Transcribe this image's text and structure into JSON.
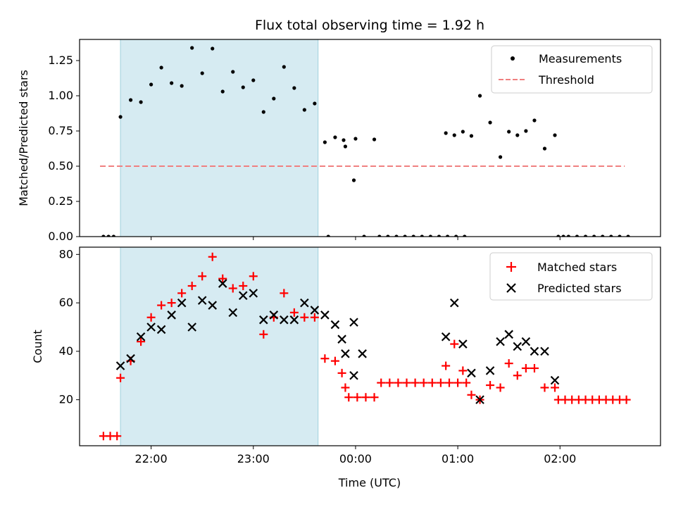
{
  "chart_data": [
    {
      "type": "scatter",
      "title": "Flux total observing time = 1.92 h",
      "xlabel": "",
      "ylabel": "Matched/Predicted stars",
      "xlim": [
        "21:18",
        "02:59"
      ],
      "ylim": [
        0,
        1.4
      ],
      "yticks": [
        0.0,
        0.25,
        0.5,
        0.75,
        1.0,
        1.25
      ],
      "ytick_labels": [
        "0.00",
        "0.25",
        "0.50",
        "0.75",
        "1.00",
        "1.25"
      ],
      "shaded_region": {
        "x0": "21:42",
        "x1": "23:38",
        "color": "#add8e6"
      },
      "legend": {
        "position": "top-right"
      },
      "series": [
        {
          "name": "Measurements",
          "marker": "dot",
          "color": "#000000",
          "points": [
            [
              "21:32",
              0
            ],
            [
              "21:35",
              0
            ],
            [
              "21:38",
              0
            ],
            [
              "21:42",
              0.85
            ],
            [
              "21:48",
              0.97
            ],
            [
              "21:54",
              0.955
            ],
            [
              "22:00",
              1.08
            ],
            [
              "22:06",
              1.2
            ],
            [
              "22:12",
              1.09
            ],
            [
              "22:18",
              1.07
            ],
            [
              "22:24",
              1.34
            ],
            [
              "22:30",
              1.16
            ],
            [
              "22:36",
              1.335
            ],
            [
              "22:42",
              1.03
            ],
            [
              "22:48",
              1.17
            ],
            [
              "22:54",
              1.06
            ],
            [
              "23:00",
              1.11
            ],
            [
              "23:06",
              0.885
            ],
            [
              "23:12",
              0.98
            ],
            [
              "23:18",
              1.205
            ],
            [
              "23:24",
              1.055
            ],
            [
              "23:30",
              0.9
            ],
            [
              "23:36",
              0.945
            ],
            [
              "23:42",
              0.67
            ],
            [
              "23:48",
              0.705
            ],
            [
              "23:54",
              0.64
            ],
            [
              "00:00",
              0.695
            ],
            [
              "23:44",
              0
            ],
            [
              "23:53",
              0.685
            ],
            [
              "23:59",
              0.4
            ],
            [
              "00:05",
              0
            ],
            [
              "00:11",
              0.69
            ],
            [
              "00:14",
              0
            ],
            [
              "00:19",
              0
            ],
            [
              "00:24",
              0
            ],
            [
              "00:29",
              0
            ],
            [
              "00:34",
              0
            ],
            [
              "00:39",
              0
            ],
            [
              "00:44",
              0
            ],
            [
              "00:49",
              0
            ],
            [
              "00:54",
              0
            ],
            [
              "00:59",
              0
            ],
            [
              "01:04",
              0
            ],
            [
              "00:53",
              0.735
            ],
            [
              "00:58",
              0.72
            ],
            [
              "01:03",
              0.745
            ],
            [
              "01:08",
              0.715
            ],
            [
              "01:13",
              1.0
            ],
            [
              "01:19",
              0.81
            ],
            [
              "01:25",
              0.565
            ],
            [
              "01:30",
              0.745
            ],
            [
              "01:35",
              0.72
            ],
            [
              "01:40",
              0.75
            ],
            [
              "01:45",
              0.825
            ],
            [
              "01:51",
              0.625
            ],
            [
              "01:57",
              0.72
            ],
            [
              "01:59",
              0
            ],
            [
              "02:02",
              0
            ],
            [
              "02:05",
              0
            ],
            [
              "02:10",
              0
            ],
            [
              "02:15",
              0
            ],
            [
              "02:20",
              0
            ],
            [
              "02:25",
              0
            ],
            [
              "02:30",
              0
            ],
            [
              "02:35",
              0
            ],
            [
              "02:40",
              0
            ]
          ]
        },
        {
          "name": "Threshold",
          "marker": "dashed-line",
          "color": "#f08080",
          "points": [
            [
              "21:30",
              0.5
            ],
            [
              "02:38",
              0.5
            ]
          ]
        }
      ]
    },
    {
      "type": "scatter",
      "title": "",
      "xlabel": "Time (UTC)",
      "ylabel": "Count",
      "xlim": [
        "21:18",
        "02:59"
      ],
      "ylim": [
        1,
        83
      ],
      "yticks": [
        20,
        40,
        60,
        80
      ],
      "ytick_labels": [
        "20",
        "40",
        "60",
        "80"
      ],
      "xticks": [
        "22:00",
        "23:00",
        "00:00",
        "01:00",
        "02:00"
      ],
      "shaded_region": {
        "x0": "21:42",
        "x1": "23:38",
        "color": "#add8e6"
      },
      "legend": {
        "position": "top-right"
      },
      "series": [
        {
          "name": "Matched stars",
          "marker": "plus",
          "color": "#ff0000",
          "points": [
            [
              "21:32",
              5
            ],
            [
              "21:36",
              5
            ],
            [
              "21:40",
              5
            ],
            [
              "21:42",
              29
            ],
            [
              "21:48",
              36
            ],
            [
              "21:54",
              44
            ],
            [
              "22:00",
              54
            ],
            [
              "22:06",
              59
            ],
            [
              "22:12",
              60
            ],
            [
              "22:18",
              64
            ],
            [
              "22:24",
              67
            ],
            [
              "22:30",
              71
            ],
            [
              "22:36",
              79
            ],
            [
              "22:42",
              70
            ],
            [
              "22:48",
              66
            ],
            [
              "22:54",
              67
            ],
            [
              "23:00",
              71
            ],
            [
              "23:06",
              47
            ],
            [
              "23:12",
              54
            ],
            [
              "23:18",
              64
            ],
            [
              "23:24",
              56
            ],
            [
              "23:30",
              54
            ],
            [
              "23:36",
              54
            ],
            [
              "23:42",
              37
            ],
            [
              "23:48",
              36
            ],
            [
              "23:54",
              25
            ],
            [
              "23:56",
              21
            ],
            [
              "00:01",
              21
            ],
            [
              "23:52",
              31
            ],
            [
              "00:06",
              21
            ],
            [
              "00:11",
              21
            ],
            [
              "00:15",
              27
            ],
            [
              "00:20",
              27
            ],
            [
              "00:25",
              27
            ],
            [
              "00:30",
              27
            ],
            [
              "00:35",
              27
            ],
            [
              "00:40",
              27
            ],
            [
              "00:45",
              27
            ],
            [
              "00:50",
              27
            ],
            [
              "00:55",
              27
            ],
            [
              "01:00",
              27
            ],
            [
              "01:05",
              27
            ],
            [
              "00:53",
              34
            ],
            [
              "00:58",
              43
            ],
            [
              "01:03",
              32
            ],
            [
              "01:08",
              22
            ],
            [
              "01:13",
              20
            ],
            [
              "01:19",
              26
            ],
            [
              "01:25",
              25
            ],
            [
              "01:30",
              35
            ],
            [
              "01:35",
              30
            ],
            [
              "01:40",
              33
            ],
            [
              "01:45",
              33
            ],
            [
              "01:51",
              25
            ],
            [
              "01:57",
              25
            ],
            [
              "01:59",
              20
            ],
            [
              "02:03",
              20
            ],
            [
              "02:07",
              20
            ],
            [
              "02:11",
              20
            ],
            [
              "02:15",
              20
            ],
            [
              "02:19",
              20
            ],
            [
              "02:23",
              20
            ],
            [
              "02:27",
              20
            ],
            [
              "02:31",
              20
            ],
            [
              "02:35",
              20
            ],
            [
              "02:39",
              20
            ]
          ]
        },
        {
          "name": "Predicted stars",
          "marker": "x",
          "color": "#000000",
          "points": [
            [
              "21:42",
              34
            ],
            [
              "21:48",
              37
            ],
            [
              "21:54",
              46
            ],
            [
              "22:00",
              50
            ],
            [
              "22:06",
              49
            ],
            [
              "22:12",
              55
            ],
            [
              "22:18",
              60
            ],
            [
              "22:24",
              50
            ],
            [
              "22:30",
              61
            ],
            [
              "22:36",
              59
            ],
            [
              "22:42",
              68
            ],
            [
              "22:48",
              56
            ],
            [
              "22:54",
              63
            ],
            [
              "23:00",
              64
            ],
            [
              "23:06",
              53
            ],
            [
              "23:12",
              55
            ],
            [
              "23:18",
              53
            ],
            [
              "23:24",
              53
            ],
            [
              "23:30",
              60
            ],
            [
              "23:36",
              57
            ],
            [
              "23:42",
              55
            ],
            [
              "23:48",
              51
            ],
            [
              "23:54",
              39
            ],
            [
              "23:59",
              30
            ],
            [
              "23:52",
              45
            ],
            [
              "23:59",
              52
            ],
            [
              "00:04",
              39
            ],
            [
              "00:53",
              46
            ],
            [
              "00:58",
              60
            ],
            [
              "01:03",
              43
            ],
            [
              "01:08",
              31
            ],
            [
              "01:13",
              20
            ],
            [
              "01:19",
              32
            ],
            [
              "01:25",
              44
            ],
            [
              "01:30",
              47
            ],
            [
              "01:35",
              42
            ],
            [
              "01:40",
              44
            ],
            [
              "01:45",
              40
            ],
            [
              "01:51",
              40
            ],
            [
              "01:57",
              28
            ]
          ]
        }
      ]
    }
  ]
}
